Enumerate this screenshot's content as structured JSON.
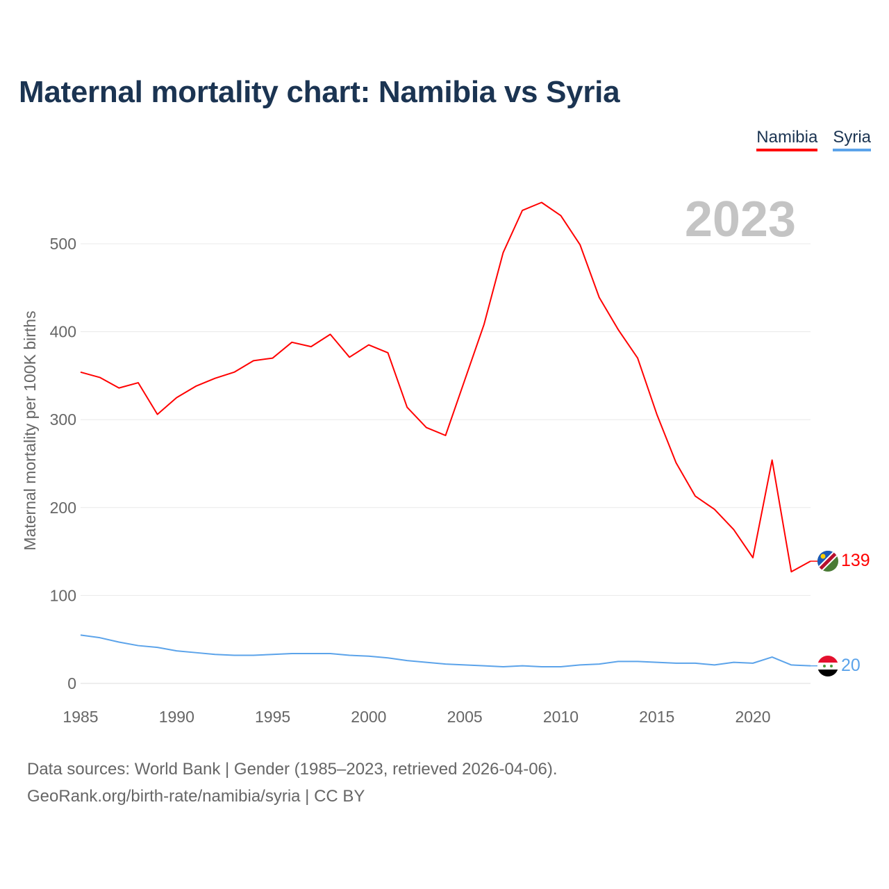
{
  "title": "Maternal mortality chart: Namibia vs Syria",
  "year_label": "2023",
  "source_line1": "Data sources: World Bank | Gender (1985–2023, retrieved 2026-04-06).",
  "source_line2": "GeoRank.org/birth-rate/namibia/syria | CC BY",
  "chart_data": {
    "type": "line",
    "title": "Maternal mortality chart: Namibia vs Syria",
    "xlabel": "",
    "ylabel": "Maternal mortality per 100K births",
    "xlim": [
      1985,
      2023
    ],
    "ylim": [
      0,
      560
    ],
    "x_ticks": [
      1985,
      1990,
      1995,
      2000,
      2005,
      2010,
      2015,
      2020
    ],
    "y_ticks": [
      0,
      100,
      200,
      300,
      400,
      500
    ],
    "grid": true,
    "legend_position": "top-right",
    "x": [
      1985,
      1986,
      1987,
      1988,
      1989,
      1990,
      1991,
      1992,
      1993,
      1994,
      1995,
      1996,
      1997,
      1998,
      1999,
      2000,
      2001,
      2002,
      2003,
      2004,
      2005,
      2006,
      2007,
      2008,
      2009,
      2010,
      2011,
      2012,
      2013,
      2014,
      2015,
      2016,
      2017,
      2018,
      2019,
      2020,
      2021,
      2022,
      2023
    ],
    "series": [
      {
        "name": "Namibia",
        "color": "#ff0000",
        "end_label": "139",
        "values": [
          354,
          348,
          336,
          342,
          306,
          325,
          338,
          347,
          354,
          367,
          370,
          388,
          383,
          397,
          371,
          385,
          376,
          314,
          291,
          282,
          345,
          408,
          490,
          538,
          547,
          532,
          499,
          439,
          402,
          370,
          306,
          251,
          213,
          198,
          175,
          143,
          254,
          127,
          139
        ]
      },
      {
        "name": "Syria",
        "color": "#5ba3ea",
        "end_label": "20",
        "values": [
          55,
          52,
          47,
          43,
          41,
          37,
          35,
          33,
          32,
          32,
          33,
          34,
          34,
          34,
          32,
          31,
          29,
          26,
          24,
          22,
          21,
          20,
          19,
          20,
          19,
          19,
          21,
          22,
          25,
          25,
          24,
          23,
          23,
          21,
          24,
          23,
          30,
          21,
          20
        ]
      }
    ]
  }
}
